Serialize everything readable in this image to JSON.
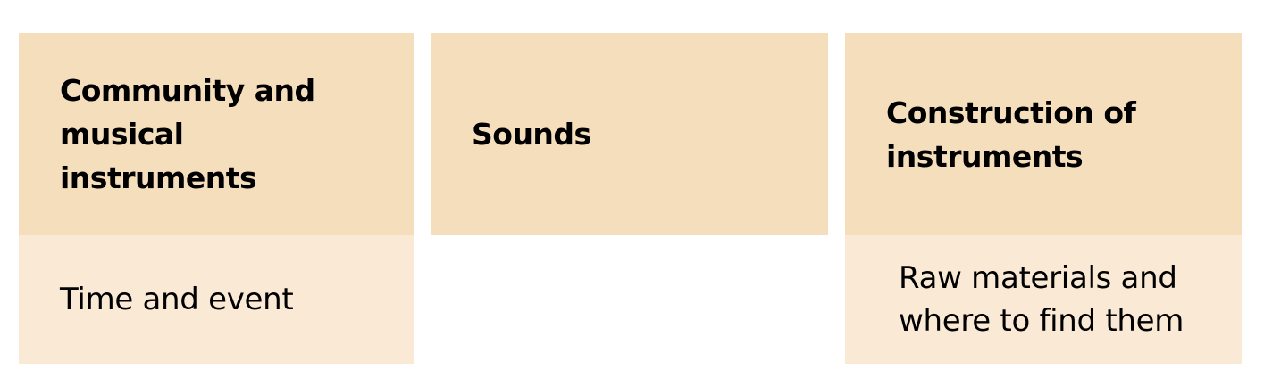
{
  "colors": {
    "header_fill": "#F5DEBC",
    "sub_fill": "#F9E9D5",
    "text": "#000000"
  },
  "columns": [
    {
      "header": "Community and musical instruments",
      "sub": "Time and event"
    },
    {
      "header": "Sounds",
      "sub": ""
    },
    {
      "header": "Construction of instruments",
      "sub": "Raw materials and where to find them"
    }
  ]
}
